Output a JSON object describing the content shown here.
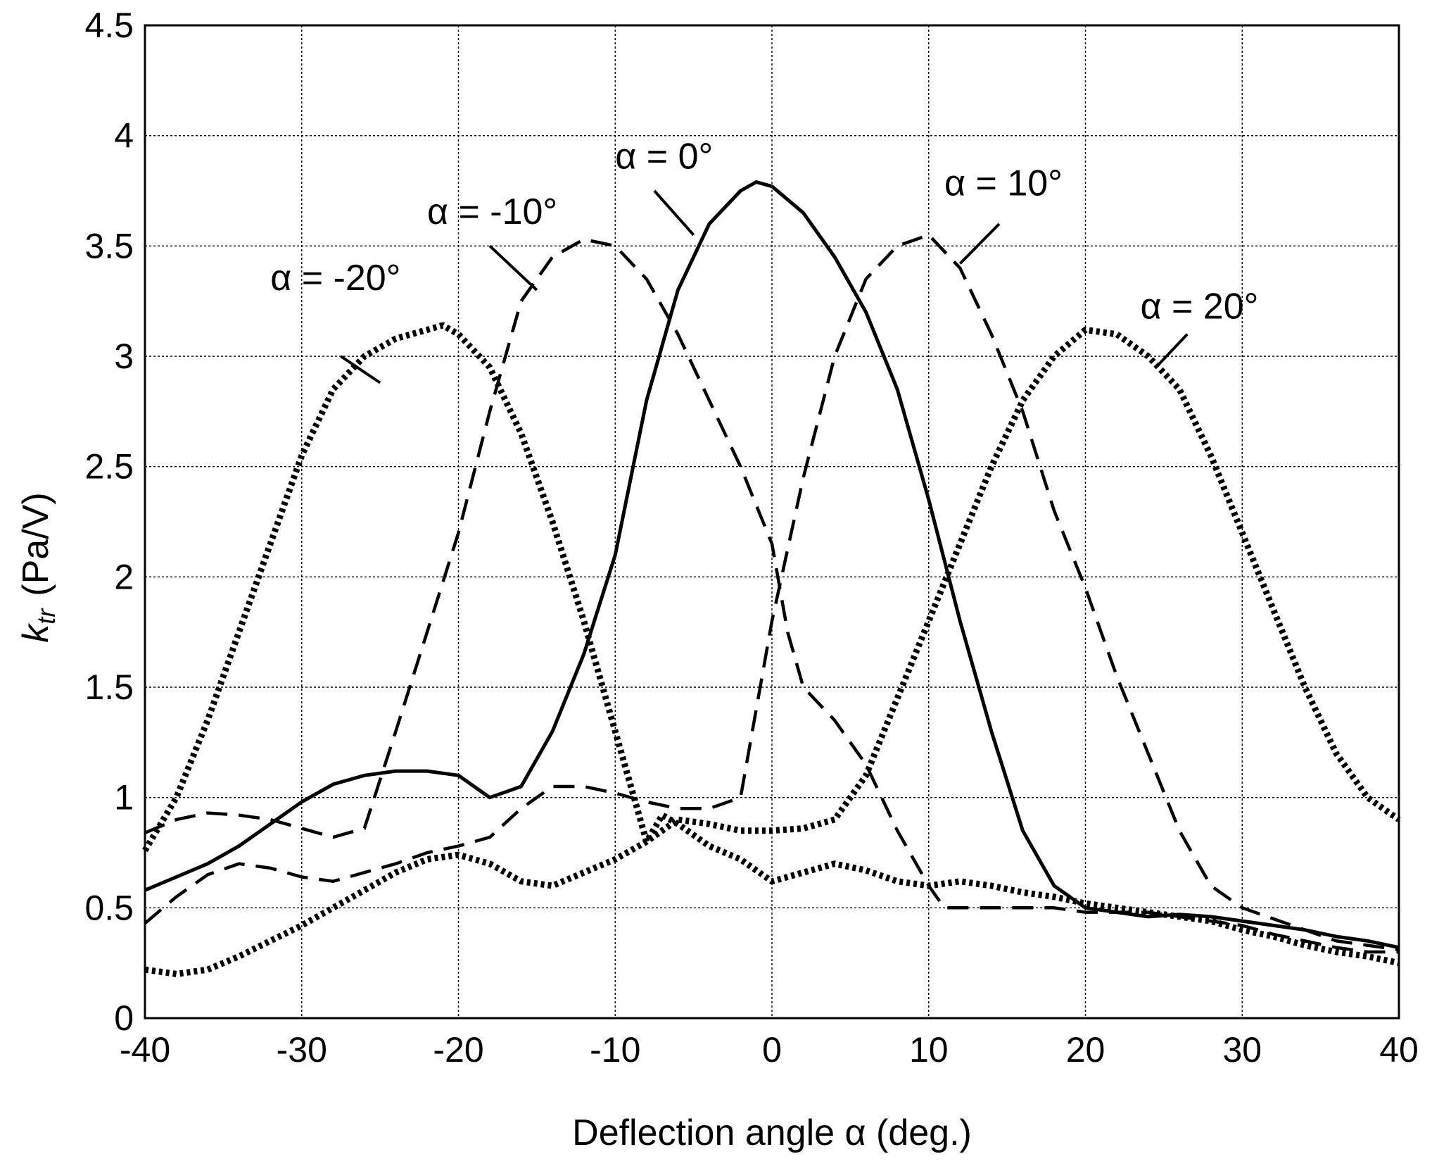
{
  "chart_data": {
    "type": "line",
    "xlabel": "Deflection angle α (deg.)",
    "ylabel_main": "k",
    "ylabel_sub": "tr",
    "ylabel_unit": "(Pa/V)",
    "xlim": [
      -40,
      40
    ],
    "ylim": [
      0,
      4.5
    ],
    "xticks": [
      -40,
      -30,
      -20,
      -10,
      0,
      10,
      20,
      30,
      40
    ],
    "xtick_labels": [
      "-40",
      "-30",
      "-20",
      "-10",
      "0",
      "10",
      "20",
      "30",
      "40"
    ],
    "yticks": [
      0,
      0.5,
      1,
      1.5,
      2,
      2.5,
      3,
      3.5,
      4,
      4.5
    ],
    "ytick_labels": [
      "0",
      "0.5",
      "1",
      "1.5",
      "2",
      "2.5",
      "3",
      "3.5",
      "4",
      "4.5"
    ],
    "grid": true,
    "series": [
      {
        "name": "α = -20°",
        "style": "dotted",
        "x": [
          -40,
          -38,
          -36,
          -34,
          -32,
          -30,
          -28,
          -26,
          -24,
          -22,
          -21,
          -20,
          -18,
          -16,
          -14,
          -12,
          -10,
          -8,
          -7,
          -6,
          -4,
          -2,
          0,
          2,
          4,
          6,
          8,
          10,
          12,
          14,
          16,
          18,
          20,
          22,
          24,
          26,
          28,
          30,
          32,
          34,
          36,
          38,
          40
        ],
        "y": [
          0.76,
          1.0,
          1.35,
          1.75,
          2.15,
          2.55,
          2.85,
          3.0,
          3.08,
          3.12,
          3.14,
          3.1,
          2.95,
          2.65,
          2.25,
          1.8,
          1.3,
          0.8,
          0.92,
          0.88,
          0.78,
          0.72,
          0.62,
          0.66,
          0.7,
          0.67,
          0.62,
          0.6,
          0.62,
          0.6,
          0.57,
          0.55,
          0.52,
          0.5,
          0.48,
          0.46,
          0.44,
          0.4,
          0.37,
          0.33,
          0.3,
          0.28,
          0.25
        ]
      },
      {
        "name": "α = -10°",
        "style": "dashed",
        "x": [
          -40,
          -38,
          -36,
          -34,
          -32,
          -30,
          -28,
          -26,
          -24,
          -22,
          -20,
          -18,
          -16,
          -14,
          -12,
          -10,
          -8,
          -6,
          -4,
          -2,
          0,
          1,
          2,
          4,
          6,
          8,
          10,
          11,
          12,
          14,
          16,
          18,
          20,
          22,
          24,
          26,
          28,
          30,
          32,
          34,
          36,
          38,
          40
        ],
        "y": [
          0.84,
          0.9,
          0.93,
          0.92,
          0.9,
          0.86,
          0.82,
          0.86,
          1.3,
          1.75,
          2.2,
          2.75,
          3.25,
          3.45,
          3.53,
          3.5,
          3.35,
          3.1,
          2.8,
          2.5,
          2.15,
          1.75,
          1.5,
          1.35,
          1.15,
          0.85,
          0.6,
          0.5,
          0.5,
          0.5,
          0.5,
          0.5,
          0.48,
          0.48,
          0.48,
          0.46,
          0.44,
          0.42,
          0.38,
          0.35,
          0.32,
          0.3,
          0.3
        ]
      },
      {
        "name": "α = 0°",
        "style": "solid",
        "x": [
          -40,
          -38,
          -36,
          -34,
          -32,
          -30,
          -28,
          -26,
          -24,
          -22,
          -20,
          -18,
          -16,
          -14,
          -12,
          -10,
          -8,
          -6,
          -4,
          -2,
          -1,
          0,
          2,
          4,
          6,
          8,
          10,
          12,
          14,
          16,
          18,
          20,
          22,
          24,
          26,
          28,
          30,
          32,
          34,
          36,
          38,
          40
        ],
        "y": [
          0.58,
          0.64,
          0.7,
          0.78,
          0.88,
          0.98,
          1.06,
          1.1,
          1.12,
          1.12,
          1.1,
          1.0,
          1.05,
          1.3,
          1.65,
          2.1,
          2.8,
          3.3,
          3.6,
          3.75,
          3.79,
          3.77,
          3.65,
          3.45,
          3.2,
          2.85,
          2.35,
          1.8,
          1.3,
          0.85,
          0.6,
          0.5,
          0.48,
          0.46,
          0.47,
          0.46,
          0.44,
          0.42,
          0.4,
          0.37,
          0.35,
          0.32
        ]
      },
      {
        "name": "α = 10°",
        "style": "dashed",
        "x": [
          -40,
          -38,
          -36,
          -34,
          -32,
          -30,
          -28,
          -26,
          -24,
          -22,
          -20,
          -18,
          -16,
          -14,
          -12,
          -10,
          -8,
          -6,
          -4,
          -2,
          0,
          2,
          4,
          6,
          8,
          10,
          12,
          14,
          16,
          18,
          20,
          22,
          24,
          26,
          28,
          30,
          32,
          34,
          36,
          38,
          40
        ],
        "y": [
          0.43,
          0.55,
          0.65,
          0.7,
          0.68,
          0.64,
          0.62,
          0.66,
          0.7,
          0.75,
          0.78,
          0.82,
          0.95,
          1.05,
          1.05,
          1.02,
          0.98,
          0.95,
          0.95,
          1.0,
          1.8,
          2.45,
          3.0,
          3.35,
          3.5,
          3.55,
          3.4,
          3.1,
          2.75,
          2.3,
          1.95,
          1.55,
          1.2,
          0.85,
          0.6,
          0.5,
          0.45,
          0.4,
          0.35,
          0.33,
          0.31
        ]
      },
      {
        "name": "α = 20°",
        "style": "dotted",
        "x": [
          -40,
          -38,
          -36,
          -34,
          -32,
          -30,
          -28,
          -26,
          -24,
          -22,
          -20,
          -18,
          -16,
          -14,
          -12,
          -10,
          -8,
          -6,
          -4,
          -2,
          0,
          2,
          4,
          6,
          8,
          10,
          12,
          14,
          16,
          18,
          20,
          22,
          24,
          26,
          28,
          30,
          32,
          34,
          36,
          38,
          40
        ],
        "y": [
          0.22,
          0.2,
          0.22,
          0.28,
          0.35,
          0.42,
          0.5,
          0.58,
          0.66,
          0.72,
          0.74,
          0.7,
          0.62,
          0.6,
          0.66,
          0.72,
          0.8,
          0.9,
          0.88,
          0.85,
          0.85,
          0.86,
          0.9,
          1.1,
          1.45,
          1.8,
          2.15,
          2.5,
          2.8,
          3.0,
          3.12,
          3.1,
          3.0,
          2.85,
          2.55,
          2.2,
          1.85,
          1.5,
          1.2,
          1.0,
          0.9
        ]
      }
    ],
    "annotations": [
      {
        "text": "α = -20°",
        "x": -32,
        "y": 3.3,
        "leader": [
          [
            -27.5,
            3.0
          ],
          [
            -25,
            2.88
          ]
        ]
      },
      {
        "text": "α = -10°",
        "x": -22,
        "y": 3.6,
        "leader": [
          [
            -18,
            3.5
          ],
          [
            -15,
            3.3
          ]
        ]
      },
      {
        "text": "α = 0°",
        "x": -10,
        "y": 3.85,
        "leader": [
          [
            -7.5,
            3.75
          ],
          [
            -5,
            3.55
          ]
        ]
      },
      {
        "text": "α = 10°",
        "x": 11,
        "y": 3.73,
        "leader": [
          [
            14.5,
            3.6
          ],
          [
            12,
            3.42
          ]
        ]
      },
      {
        "text": "α = 20°",
        "x": 23.5,
        "y": 3.17,
        "leader": [
          [
            26.5,
            3.1
          ],
          [
            24.5,
            2.95
          ]
        ]
      }
    ]
  }
}
